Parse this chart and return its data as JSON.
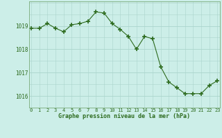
{
  "x": [
    0,
    1,
    2,
    3,
    4,
    5,
    6,
    7,
    8,
    9,
    10,
    11,
    12,
    13,
    14,
    15,
    16,
    17,
    18,
    19,
    20,
    21,
    22,
    23
  ],
  "y": [
    1018.9,
    1018.9,
    1019.1,
    1018.9,
    1018.75,
    1019.05,
    1019.1,
    1019.2,
    1019.6,
    1019.55,
    1019.1,
    1018.85,
    1018.55,
    1018.0,
    1018.55,
    1018.45,
    1017.25,
    1016.6,
    1016.35,
    1016.1,
    1016.1,
    1016.1,
    1016.45,
    1016.65
  ],
  "line_color": "#2d6b1e",
  "marker_color": "#2d6b1e",
  "bg_color": "#cceee8",
  "grid_color": "#aad4cc",
  "tick_label_color": "#2d6b1e",
  "xlabel": "Graphe pression niveau de la mer (hPa)",
  "xlabel_color": "#2d6b1e",
  "ylim": [
    1015.5,
    1020.05
  ],
  "yticks": [
    1016,
    1017,
    1018,
    1019
  ],
  "border_color": "#7aaa7a"
}
